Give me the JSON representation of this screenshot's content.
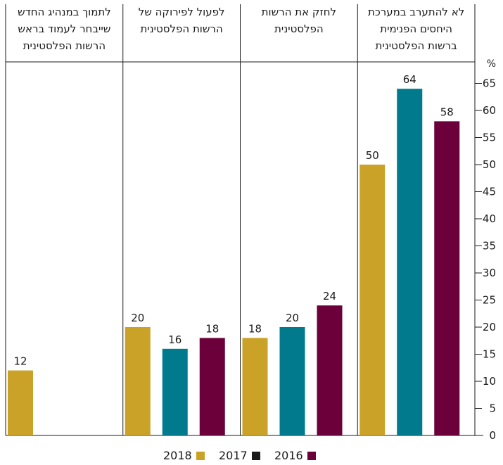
{
  "chart_data": {
    "type": "bar",
    "unit_label": "%",
    "ylim": [
      0,
      70
    ],
    "yticks": [
      0,
      5,
      10,
      15,
      20,
      25,
      30,
      35,
      40,
      45,
      50,
      55,
      60,
      65
    ],
    "categories": [
      [
        "לא להתערב במערכת",
        "היחסים הפנימית",
        "ברשות הפלסטינית"
      ],
      [
        "לחזק את הרשות",
        "הפלסטינית"
      ],
      [
        "לפעול לפירוקה של",
        "הרשות הפלסטינית"
      ],
      [
        "לתמוך במנהיג החדש",
        "שייבחר לעמוד בראש",
        "הרשות הפלסטינית"
      ]
    ],
    "series": [
      {
        "name": "2018",
        "color": "#c9a227",
        "values": [
          50,
          18,
          20,
          12
        ]
      },
      {
        "name": "2017",
        "color": "#007a8c",
        "values": [
          64,
          20,
          16,
          null
        ]
      },
      {
        "name": "2016",
        "color": "#6b003a",
        "values": [
          58,
          24,
          18,
          null
        ]
      }
    ],
    "legend": {
      "position": "bottom",
      "items": [
        {
          "label": "2018",
          "color": "#c9a227"
        },
        {
          "label": "2017",
          "color": "#1a1a1a"
        },
        {
          "label": "2016",
          "color": "#6b003a"
        }
      ]
    },
    "grid": false
  }
}
